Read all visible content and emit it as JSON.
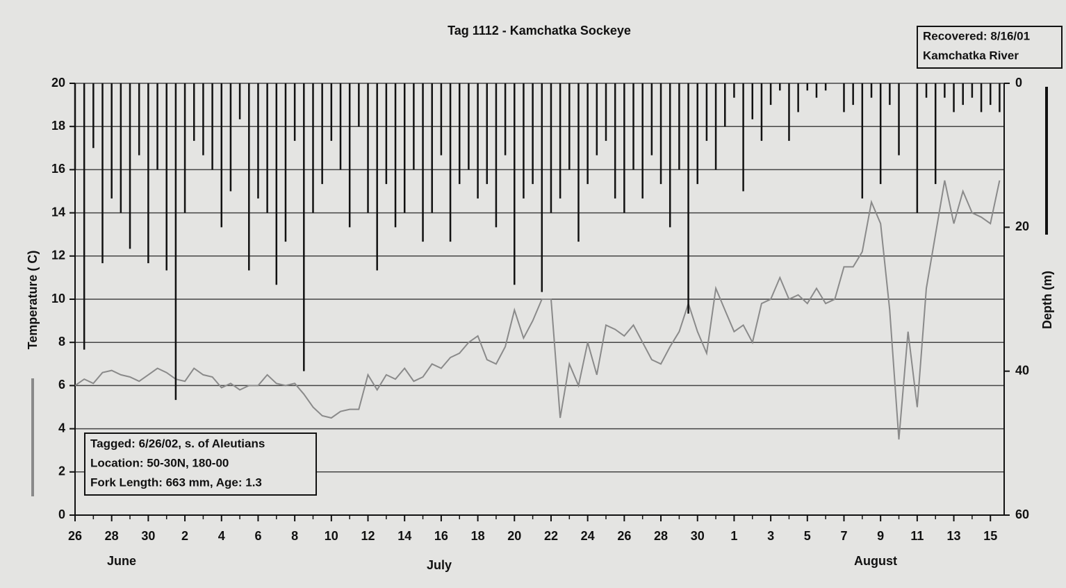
{
  "chart_data": {
    "type": "line",
    "title": "Tag 1112 - Kamchatka Sockeye",
    "recovered_note": [
      "Recovered:  8/16/01",
      "Kamchatka River"
    ],
    "tagged_note": [
      "Tagged:  6/26/02, s. of Aleutians",
      "Location: 50-30N, 180-00",
      "Fork Length: 663 mm, Age: 1.3"
    ],
    "ylabel": "Temperature ( C)",
    "y2label": "Depth (m)",
    "month_labels": [
      "June",
      "July",
      "August"
    ],
    "xlim": [
      0,
      50.75
    ],
    "xticks": [
      {
        "value": 0,
        "label": "26"
      },
      {
        "value": 2,
        "label": "28"
      },
      {
        "value": 4,
        "label": "30"
      },
      {
        "value": 6,
        "label": "2"
      },
      {
        "value": 8,
        "label": "4"
      },
      {
        "value": 10,
        "label": "6"
      },
      {
        "value": 12,
        "label": "8"
      },
      {
        "value": 14,
        "label": "10"
      },
      {
        "value": 16,
        "label": "12"
      },
      {
        "value": 18,
        "label": "14"
      },
      {
        "value": 20,
        "label": "16"
      },
      {
        "value": 22,
        "label": "18"
      },
      {
        "value": 24,
        "label": "20"
      },
      {
        "value": 26,
        "label": "22"
      },
      {
        "value": 28,
        "label": "24"
      },
      {
        "value": 30,
        "label": "26"
      },
      {
        "value": 32,
        "label": "28"
      },
      {
        "value": 34,
        "label": "30"
      },
      {
        "value": 36,
        "label": "1"
      },
      {
        "value": 38,
        "label": "3"
      },
      {
        "value": 40,
        "label": "5"
      },
      {
        "value": 42,
        "label": "7"
      },
      {
        "value": 44,
        "label": "9"
      },
      {
        "value": 46,
        "label": "11"
      },
      {
        "value": 48,
        "label": "13"
      },
      {
        "value": 50,
        "label": "15"
      }
    ],
    "ylim": [
      0,
      20
    ],
    "yticks": [
      0,
      2,
      4,
      6,
      8,
      10,
      12,
      14,
      16,
      18,
      20
    ],
    "y2lim": [
      60,
      0
    ],
    "y2ticks": [
      0,
      20,
      40,
      60
    ],
    "grid": true,
    "x": [
      0,
      0.5,
      1,
      1.5,
      2,
      2.5,
      3,
      3.5,
      4,
      4.5,
      5,
      5.5,
      6,
      6.5,
      7,
      7.5,
      8,
      8.5,
      9,
      9.5,
      10,
      10.5,
      11,
      11.5,
      12,
      12.5,
      13,
      13.5,
      14,
      14.5,
      15,
      15.5,
      16,
      16.5,
      17,
      17.5,
      18,
      18.5,
      19,
      19.5,
      20,
      20.5,
      21,
      21.5,
      22,
      22.5,
      23,
      23.5,
      24,
      24.5,
      25,
      25.5,
      26,
      26.5,
      27,
      27.5,
      28,
      28.5,
      29,
      29.5,
      30,
      30.5,
      31,
      31.5,
      32,
      32.5,
      33,
      33.5,
      34,
      34.5,
      35,
      35.5,
      36,
      36.5,
      37,
      37.5,
      38,
      38.5,
      39,
      39.5,
      40,
      40.5,
      41,
      41.5,
      42,
      42.5,
      43,
      43.5,
      44,
      44.5,
      45,
      45.5,
      46,
      46.5,
      47,
      47.5,
      48,
      48.5,
      49,
      49.5,
      50,
      50.5
    ],
    "series": [
      {
        "type": "line",
        "color": "#8a8a8a",
        "axis": "y",
        "values": [
          6.0,
          6.3,
          6.1,
          6.6,
          6.7,
          6.5,
          6.4,
          6.2,
          6.5,
          6.8,
          6.6,
          6.3,
          6.2,
          6.8,
          6.5,
          6.4,
          5.9,
          6.1,
          5.8,
          6.0,
          6.0,
          6.5,
          6.1,
          6.0,
          6.1,
          5.6,
          5.0,
          4.6,
          4.5,
          4.8,
          4.9,
          4.9,
          6.5,
          5.8,
          6.5,
          6.3,
          6.8,
          6.2,
          6.4,
          7.0,
          6.8,
          7.3,
          7.5,
          8.0,
          8.3,
          7.2,
          7.0,
          7.8,
          9.5,
          8.2,
          9.0,
          10.0,
          10.0,
          4.5,
          7.0,
          6.0,
          8.0,
          6.5,
          8.8,
          8.6,
          8.3,
          8.8,
          8.0,
          7.2,
          7.0,
          7.8,
          8.5,
          9.8,
          8.5,
          7.5,
          10.5,
          9.5,
          8.5,
          8.8,
          8.0,
          9.8,
          10.0,
          11.0,
          10.0,
          10.2,
          9.8,
          10.5,
          9.8,
          10.0,
          11.5,
          11.5,
          12.2,
          14.5,
          13.5,
          9.5,
          3.5,
          8.5,
          5.0,
          10.5,
          13.0,
          15.5,
          13.5,
          15.0,
          14.0,
          13.8,
          13.5,
          15.5
        ]
      },
      {
        "type": "bar",
        "color": "#111111",
        "axis": "y2",
        "values": [
          12,
          37,
          9,
          25,
          16,
          18,
          23,
          10,
          25,
          12,
          26,
          44,
          18,
          8,
          10,
          12,
          20,
          15,
          5,
          26,
          16,
          18,
          28,
          22,
          8,
          40,
          18,
          14,
          8,
          12,
          20,
          6,
          18,
          26,
          14,
          20,
          18,
          12,
          22,
          18,
          10,
          22,
          14,
          12,
          16,
          14,
          20,
          10,
          28,
          16,
          14,
          29,
          18,
          16,
          12,
          22,
          14,
          10,
          8,
          16,
          18,
          12,
          16,
          10,
          14,
          20,
          12,
          32,
          14,
          8,
          12,
          6,
          2,
          15,
          5,
          8,
          3,
          1,
          8,
          4,
          1,
          2,
          1,
          0,
          4,
          3,
          16,
          2,
          14,
          3,
          10,
          0,
          18,
          2,
          14,
          2,
          4,
          3,
          2,
          4,
          3,
          4
        ]
      }
    ]
  }
}
